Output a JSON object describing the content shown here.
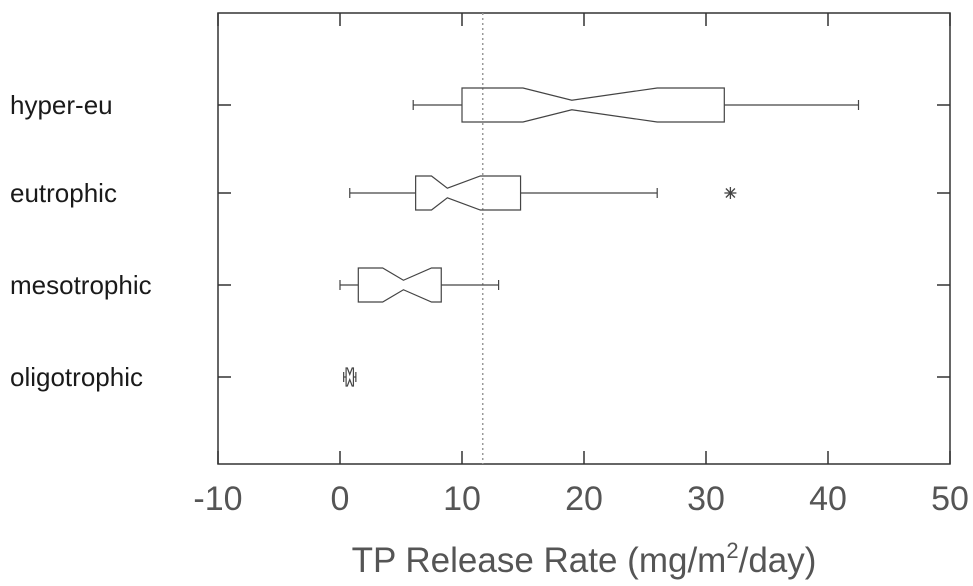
{
  "chart_data": {
    "type": "boxplot",
    "orientation": "horizontal",
    "notched": true,
    "xlabel": {
      "prefix": "TP Release Rate (mg/m",
      "superscript": "2",
      "suffix": "/day)"
    },
    "xlim": [
      -10,
      50
    ],
    "xticks": [
      -10,
      0,
      10,
      20,
      30,
      40,
      50
    ],
    "reference_line_x": 11.7,
    "categories": [
      "hyper-eu",
      "eutrophic",
      "mesotrophic",
      "oligotrophic"
    ],
    "boxes": [
      {
        "category": "hyper-eu",
        "whisker_low": 6,
        "q1": 10,
        "notch_low": 15,
        "median": 19,
        "notch_high": 26,
        "q3": 31.5,
        "whisker_high": 42.5,
        "outliers": []
      },
      {
        "category": "eutrophic",
        "whisker_low": 0.8,
        "q1": 6.2,
        "notch_low": 7.5,
        "median": 8.8,
        "notch_high": 11.5,
        "q3": 14.8,
        "whisker_high": 26,
        "outliers": [
          32
        ]
      },
      {
        "category": "mesotrophic",
        "whisker_low": 0,
        "q1": 1.5,
        "notch_low": 3.5,
        "median": 5.2,
        "notch_high": 7.5,
        "q3": 8.3,
        "whisker_high": 13,
        "outliers": []
      },
      {
        "category": "oligotrophic",
        "whisker_low": 0.3,
        "q1": 0.5,
        "notch_low": 0.6,
        "median": 0.8,
        "notch_high": 1.0,
        "q3": 1.1,
        "whisker_high": 1.3,
        "outliers": []
      }
    ],
    "colors": {
      "box": "#444444",
      "axis": "#333333",
      "reference": "#999999",
      "labels": "#555555"
    }
  }
}
